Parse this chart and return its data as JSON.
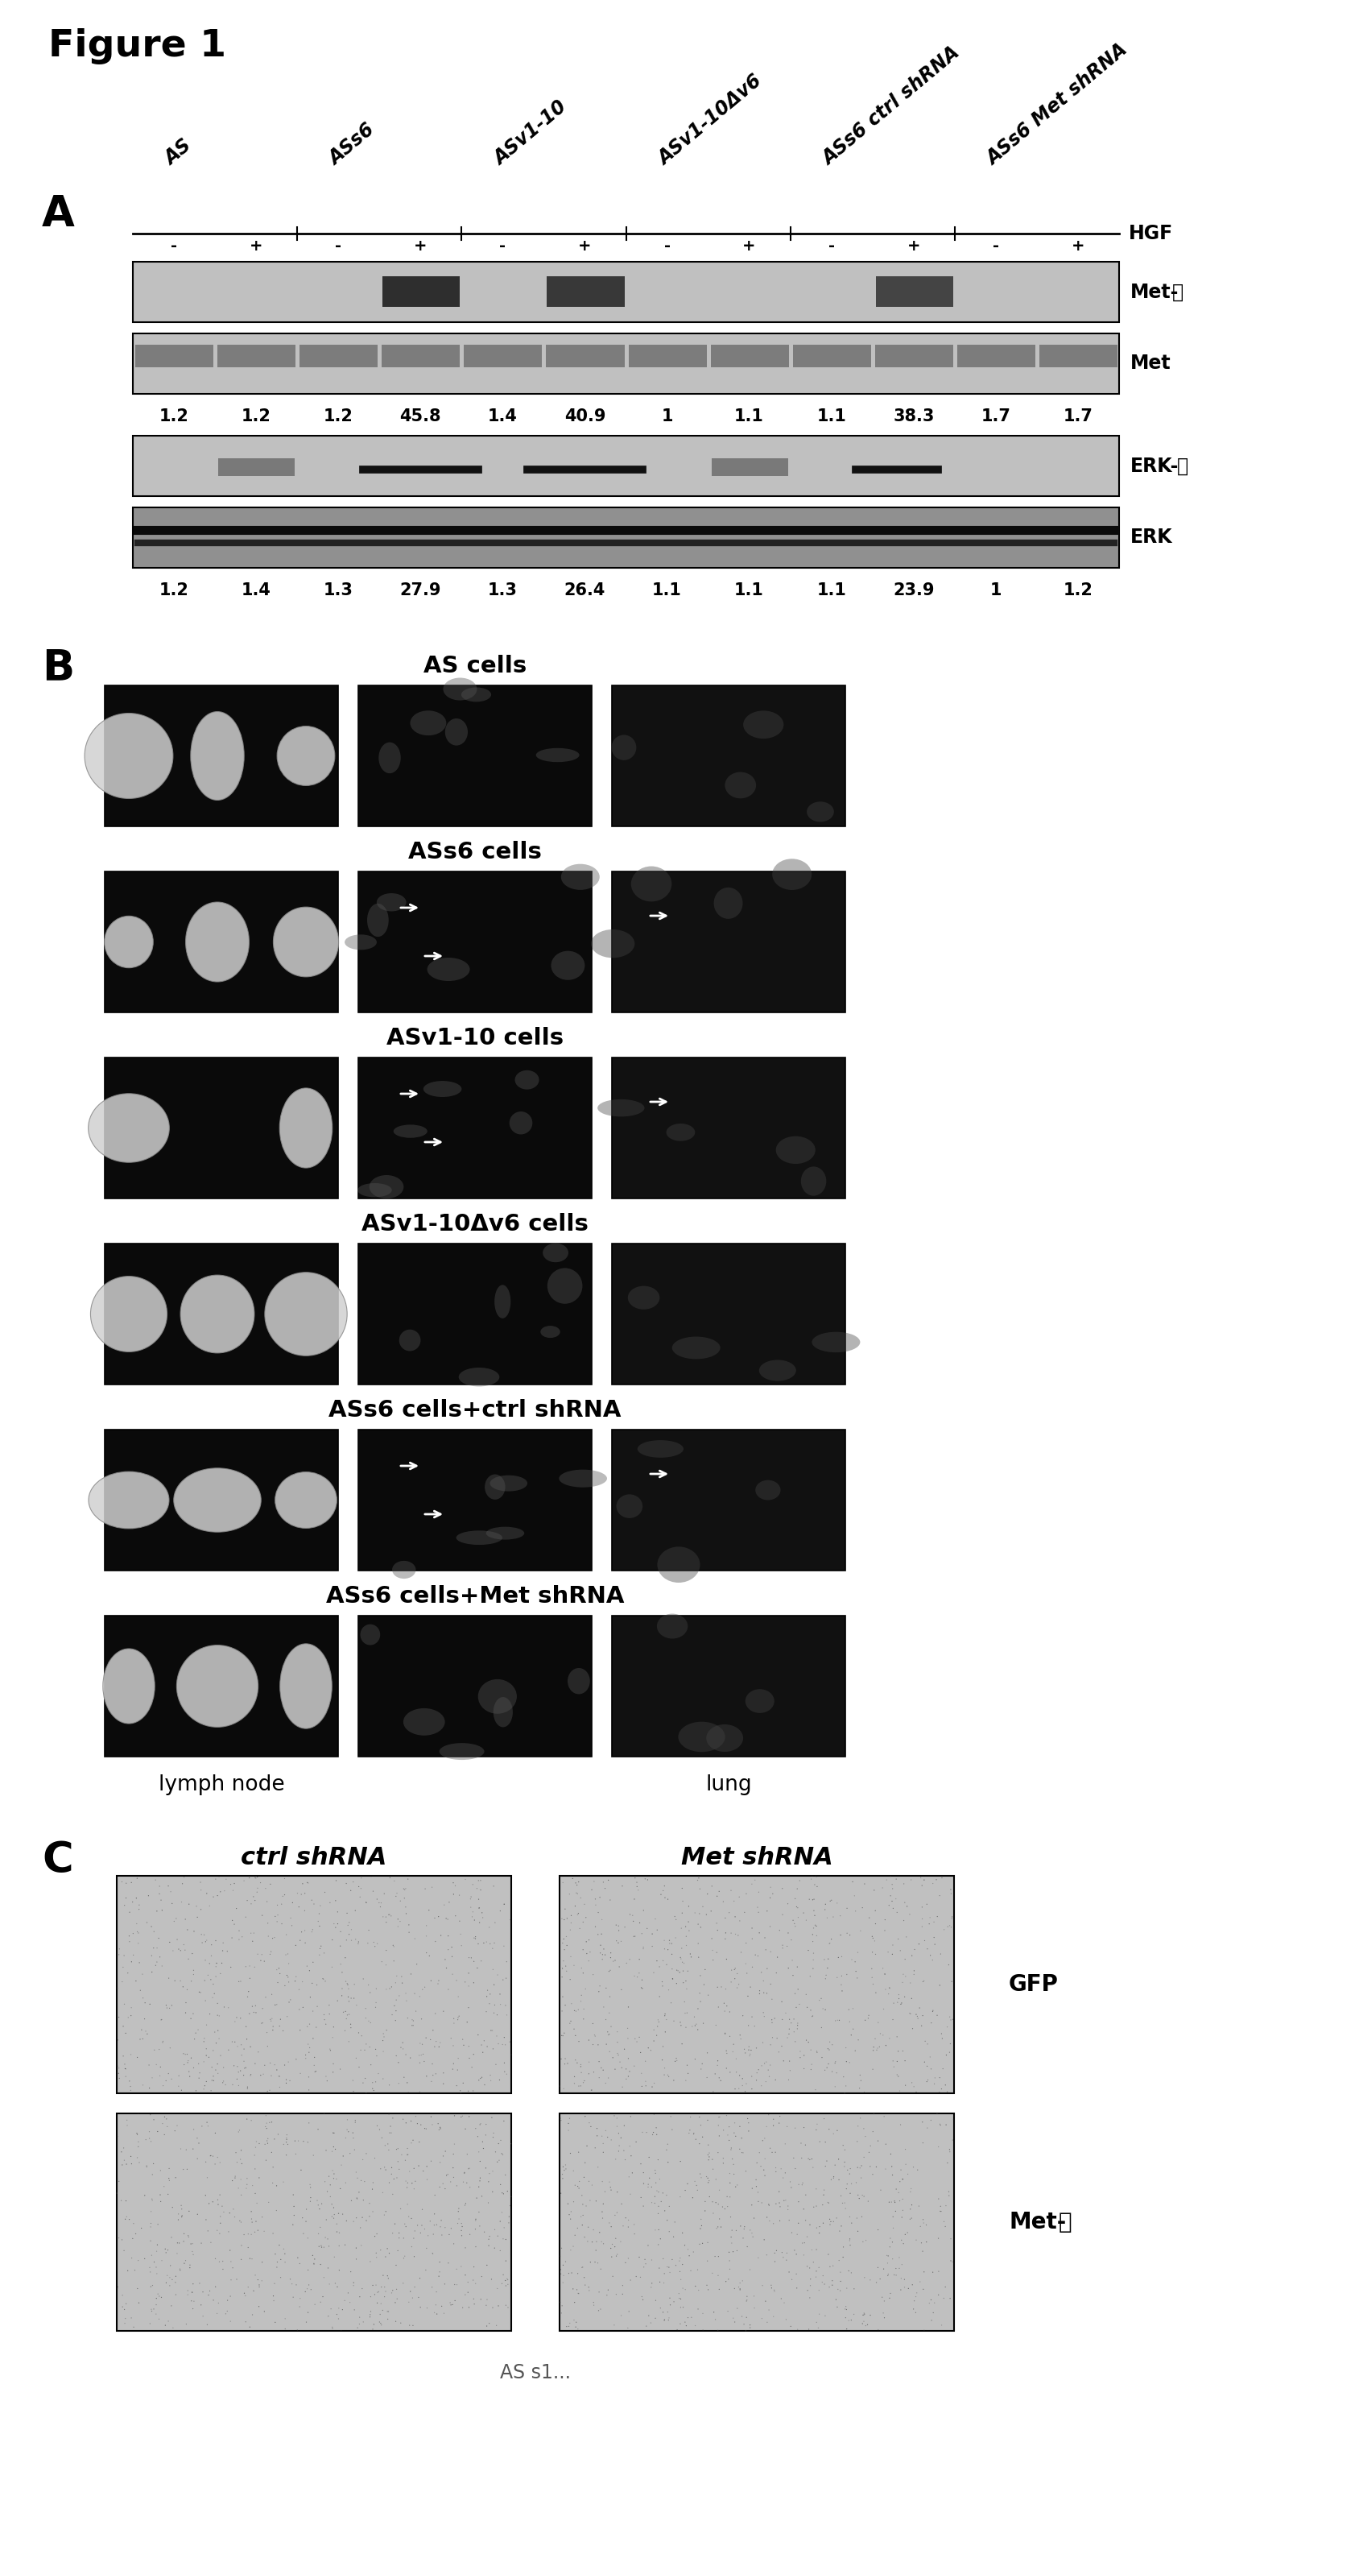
{
  "figure_title": "Figure 1",
  "panel_A": {
    "label": "A",
    "column_groups": [
      "AS",
      "ASs6",
      "ASv1-10",
      "ASv1-10Δv6",
      "ASs6 ctrl shRNA",
      "ASs6 Met shRNA"
    ],
    "hgf_signs": [
      "-",
      "+",
      "-",
      "+",
      "-",
      "+",
      "-",
      "+",
      "-",
      "+",
      "-",
      "+"
    ],
    "blot_labels": [
      "Met-P",
      "Met",
      "ERK-P",
      "ERK"
    ],
    "met_p_vals": [
      "1.2",
      "1.2",
      "1.2",
      "45.8",
      "1.4",
      "40.9",
      "1",
      "1.1",
      "1.1",
      "38.3",
      "1.7",
      "1.7"
    ],
    "erk_vals": [
      "1.2",
      "1.4",
      "1.3",
      "27.9",
      "1.3",
      "26.4",
      "1.1",
      "1.1",
      "1.1",
      "23.9",
      "1",
      "1.2"
    ]
  },
  "panel_B": {
    "label": "B",
    "rows": [
      {
        "title": "AS cells",
        "has_arrows_mid": false,
        "has_arrows_right": false
      },
      {
        "title": "ASs6 cells",
        "has_arrows_mid": true,
        "has_arrows_right": true
      },
      {
        "title": "ASv1-10 cells",
        "has_arrows_mid": true,
        "has_arrows_right": true
      },
      {
        "title": "ASv1-10Δv6 cells",
        "has_arrows_mid": false,
        "has_arrows_right": false
      },
      {
        "title": "ASs6 cells+ctrl shRNA",
        "has_arrows_mid": true,
        "has_arrows_right": true
      },
      {
        "title": "ASs6 cells+Met shRNA",
        "has_arrows_mid": false,
        "has_arrows_right": false
      }
    ],
    "col_label_left": "lymph node",
    "col_label_right": "lung"
  },
  "panel_C": {
    "label": "C",
    "col_labels": [
      "ctrl shRNA",
      "Met shRNA"
    ],
    "row_labels": [
      "GFP",
      "Met-P"
    ]
  },
  "bg": "#ffffff",
  "blot_bg": "#c0c0c0",
  "blot_border": "#000000",
  "micro_dark": "#101010",
  "micro_light_bg": "#c8c8c8"
}
